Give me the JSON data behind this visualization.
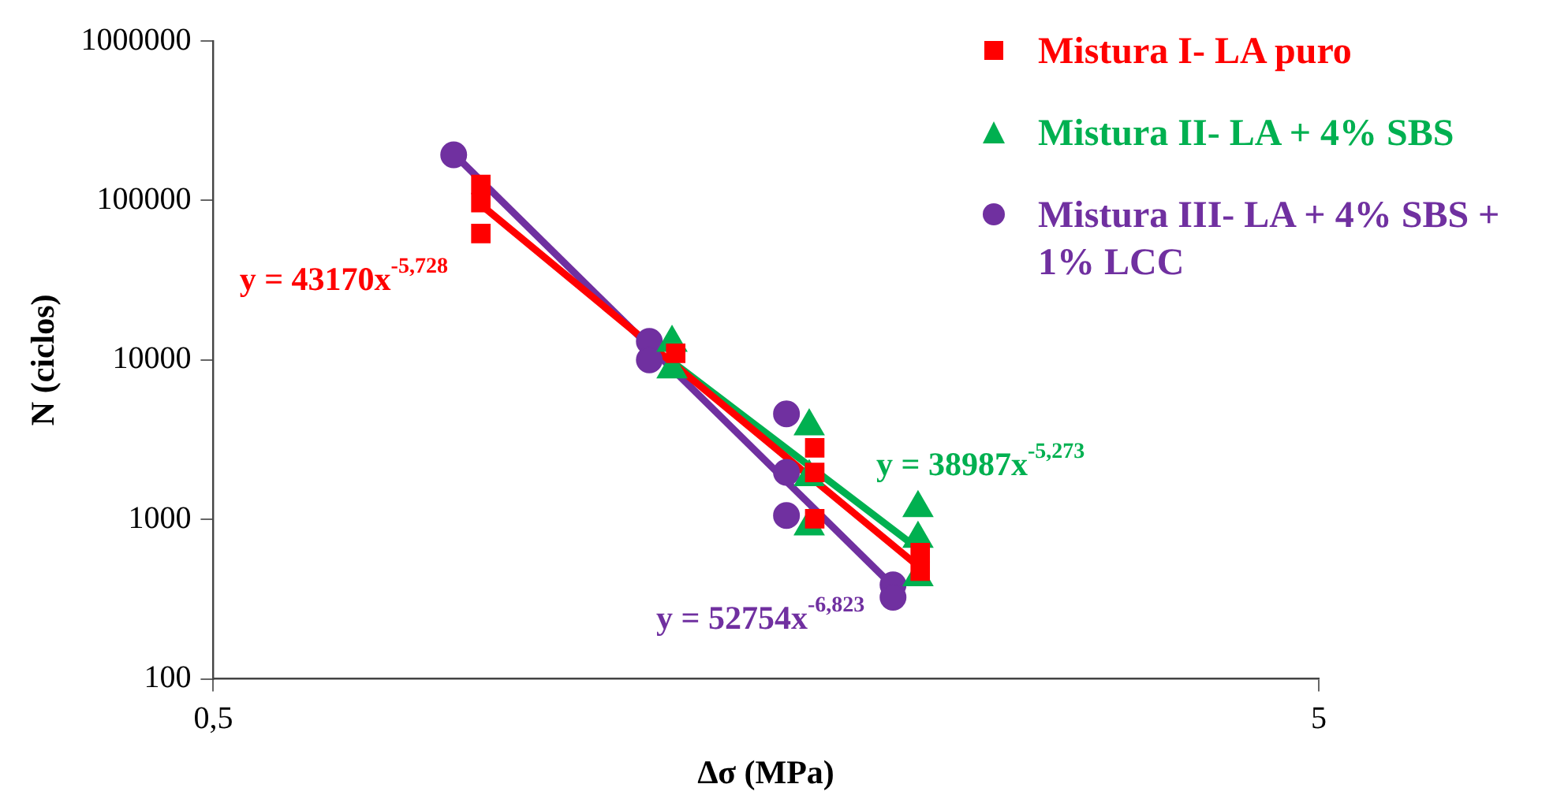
{
  "chart_data": {
    "type": "scatter",
    "xlabel": "∆σ (MPa)",
    "ylabel": "N (ciclos)",
    "log": "xy",
    "grid": false,
    "legend": "top right",
    "xlim": [
      0.5,
      5
    ],
    "xticks": [
      {
        "value": 0.5,
        "label": "0,5"
      },
      5
    ],
    "ylim": [
      100,
      1000000
    ],
    "yticks": [
      100,
      1000,
      10000,
      100000,
      1000000
    ],
    "series": [
      {
        "name": "Mistura I- LA puro",
        "marker": "square",
        "color": "#ff0000",
        "x": [
          0.873,
          0.873,
          0.873,
          1.31,
          1.75,
          1.75,
          1.75,
          2.18,
          2.18
        ],
        "values": [
          126000,
          97000,
          62000,
          11000,
          2810,
          1970,
          1010,
          620,
          474
        ]
      },
      {
        "name": "Mistura II- LA + 4% SBS",
        "marker": "triangle",
        "color": "#00b050",
        "x": [
          1.3,
          1.3,
          1.73,
          1.73,
          1.73,
          2.17,
          2.17,
          2.17
        ],
        "values": [
          12800,
          8740,
          3840,
          1840,
          905,
          1180,
          757,
          434
        ]
      },
      {
        "name": "Mistura III- LA + 4% SBS + 1% LCC",
        "marker": "circle",
        "color": "#7030a0",
        "x": [
          0.825,
          1.24,
          1.24,
          1.65,
          1.65,
          1.65,
          2.06,
          2.06
        ],
        "values": [
          193000,
          13060,
          10000,
          4590,
          1970,
          1057,
          389,
          325
        ]
      },
      {
        "type": "line",
        "marker": "none",
        "color": "#ff0000",
        "x": [
          0.873,
          2.18
        ],
        "values": [
          94000,
          497
        ]
      },
      {
        "type": "line",
        "marker": "none",
        "color": "#00b050",
        "x": [
          1.3,
          2.17
        ],
        "values": [
          9773,
          656
        ]
      },
      {
        "type": "line",
        "marker": "none",
        "color": "#7030a0",
        "x": [
          0.825,
          2.06
        ],
        "values": [
          196000,
          381
        ]
      }
    ],
    "annotations": [
      "y = 43170x$^{-5,728}$",
      "y = 38987x$^{-5,273}$",
      "y = 52754x$^{-6,823}$"
    ]
  }
}
